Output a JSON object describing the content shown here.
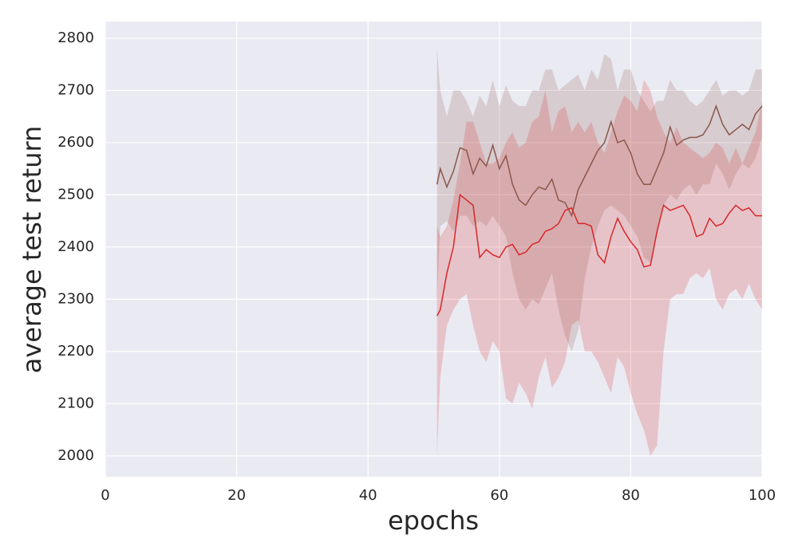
{
  "chart_data": {
    "type": "line",
    "xlabel": "epochs",
    "ylabel": "average test return",
    "xlim": [
      0,
      100
    ],
    "xticks": [
      0,
      20,
      40,
      60,
      80,
      100
    ],
    "ylim": [
      1960,
      2832
    ],
    "yticks": [
      2000,
      2100,
      2200,
      2300,
      2400,
      2500,
      2600,
      2700,
      2800
    ],
    "grid": true,
    "background": "#eaeaf2",
    "x": [
      50.5,
      51,
      52,
      53,
      54,
      55,
      56,
      57,
      58,
      59,
      60,
      61,
      62,
      63,
      64,
      65,
      66,
      67,
      68,
      69,
      70,
      71,
      72,
      73,
      74,
      75,
      76,
      77,
      78,
      79,
      80,
      81,
      82,
      83,
      84,
      85,
      86,
      87,
      88,
      89,
      90,
      91,
      92,
      93,
      94,
      95,
      96,
      97,
      98,
      99,
      100
    ],
    "series": [
      {
        "color": "#8c564b",
        "values": [
          2520,
          2550,
          2515,
          2545,
          2590,
          2585,
          2540,
          2570,
          2555,
          2595,
          2550,
          2575,
          2520,
          2490,
          2480,
          2500,
          2515,
          2510,
          2530,
          2490,
          2485,
          2460,
          2510,
          2535,
          2560,
          2585,
          2600,
          2640,
          2600,
          2605,
          2580,
          2540,
          2520,
          2520,
          2550,
          2580,
          2630,
          2595,
          2605,
          2610,
          2610,
          2615,
          2635,
          2670,
          2635,
          2615,
          2625,
          2635,
          2625,
          2655,
          2670
        ],
        "lower": [
          2300,
          2440,
          2450,
          2430,
          2460,
          2460,
          2440,
          2450,
          2440,
          2460,
          2440,
          2420,
          2350,
          2300,
          2280,
          2300,
          2290,
          2320,
          2350,
          2280,
          2230,
          2200,
          2240,
          2340,
          2400,
          2440,
          2470,
          2480,
          2470,
          2460,
          2440,
          2420,
          2380,
          2370,
          2420,
          2480,
          2500,
          2490,
          2510,
          2520,
          2500,
          2520,
          2520,
          2560,
          2540,
          2510,
          2540,
          2560,
          2550,
          2570,
          2610
        ],
        "upper": [
          2780,
          2700,
          2650,
          2700,
          2700,
          2680,
          2650,
          2690,
          2670,
          2720,
          2670,
          2710,
          2680,
          2670,
          2670,
          2700,
          2700,
          2740,
          2740,
          2700,
          2710,
          2720,
          2730,
          2700,
          2740,
          2720,
          2770,
          2760,
          2700,
          2740,
          2740,
          2700,
          2680,
          2660,
          2680,
          2680,
          2720,
          2700,
          2700,
          2680,
          2670,
          2680,
          2700,
          2720,
          2690,
          2700,
          2700,
          2690,
          2700,
          2740,
          2740
        ]
      },
      {
        "color": "#d62728",
        "values": [
          2268,
          2280,
          2350,
          2400,
          2500,
          2490,
          2480,
          2380,
          2395,
          2385,
          2380,
          2400,
          2405,
          2385,
          2390,
          2405,
          2410,
          2430,
          2435,
          2445,
          2470,
          2475,
          2445,
          2445,
          2440,
          2385,
          2370,
          2420,
          2455,
          2430,
          2410,
          2395,
          2362,
          2365,
          2430,
          2480,
          2470,
          2475,
          2480,
          2460,
          2420,
          2425,
          2455,
          2440,
          2445,
          2465,
          2480,
          2470,
          2475,
          2460,
          2460
        ],
        "lower": [
          2000,
          2150,
          2250,
          2280,
          2300,
          2310,
          2250,
          2200,
          2180,
          2220,
          2200,
          2110,
          2100,
          2140,
          2120,
          2090,
          2150,
          2190,
          2130,
          2150,
          2180,
          2250,
          2260,
          2200,
          2200,
          2180,
          2150,
          2120,
          2190,
          2170,
          2120,
          2080,
          2050,
          2000,
          2020,
          2200,
          2300,
          2310,
          2310,
          2340,
          2350,
          2340,
          2360,
          2300,
          2280,
          2310,
          2320,
          2300,
          2330,
          2300,
          2280
        ],
        "upper": [
          2440,
          2420,
          2440,
          2490,
          2560,
          2640,
          2640,
          2600,
          2560,
          2560,
          2570,
          2600,
          2620,
          2590,
          2600,
          2640,
          2650,
          2700,
          2620,
          2660,
          2670,
          2620,
          2640,
          2620,
          2640,
          2600,
          2580,
          2620,
          2660,
          2690,
          2680,
          2660,
          2720,
          2700,
          2650,
          2620,
          2600,
          2630,
          2600,
          2590,
          2580,
          2570,
          2580,
          2600,
          2590,
          2560,
          2590,
          2560,
          2590,
          2620,
          2680
        ]
      }
    ]
  }
}
